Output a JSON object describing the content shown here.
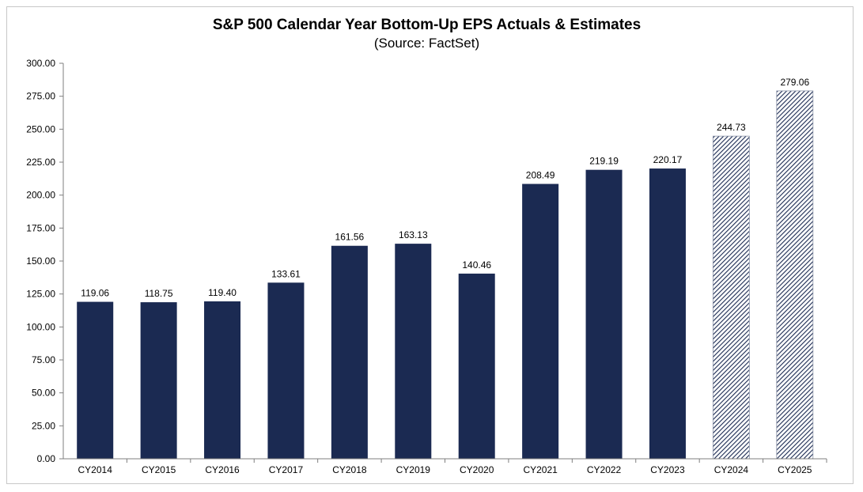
{
  "chart_data": {
    "type": "bar",
    "title": "S&P 500 Calendar Year Bottom-Up EPS Actuals & Estimates",
    "subtitle": "(Source: FactSet)",
    "categories": [
      "CY2014",
      "CY2015",
      "CY2016",
      "CY2017",
      "CY2018",
      "CY2019",
      "CY2020",
      "CY2021",
      "CY2022",
      "CY2023",
      "CY2024",
      "CY2025"
    ],
    "values": [
      119.06,
      118.75,
      119.4,
      133.61,
      161.56,
      163.13,
      140.46,
      208.49,
      219.19,
      220.17,
      244.73,
      279.06
    ],
    "value_labels": [
      "119.06",
      "118.75",
      "119.40",
      "133.61",
      "161.56",
      "163.13",
      "140.46",
      "208.49",
      "219.19",
      "220.17",
      "244.73",
      "279.06"
    ],
    "estimate_flags": [
      false,
      false,
      false,
      false,
      false,
      false,
      false,
      false,
      false,
      false,
      true,
      true
    ],
    "ylim": [
      0,
      300
    ],
    "yticks": [
      "0.00",
      "25.00",
      "50.00",
      "75.00",
      "100.00",
      "125.00",
      "150.00",
      "175.00",
      "200.00",
      "225.00",
      "250.00",
      "275.00",
      "300.00"
    ],
    "xlabel": "",
    "ylabel": "",
    "grid": false,
    "legend": "none",
    "colors": {
      "actual": "#1b2a52",
      "estimate_hatch": "#1b2a52",
      "axis": "#7f7f7f"
    }
  }
}
